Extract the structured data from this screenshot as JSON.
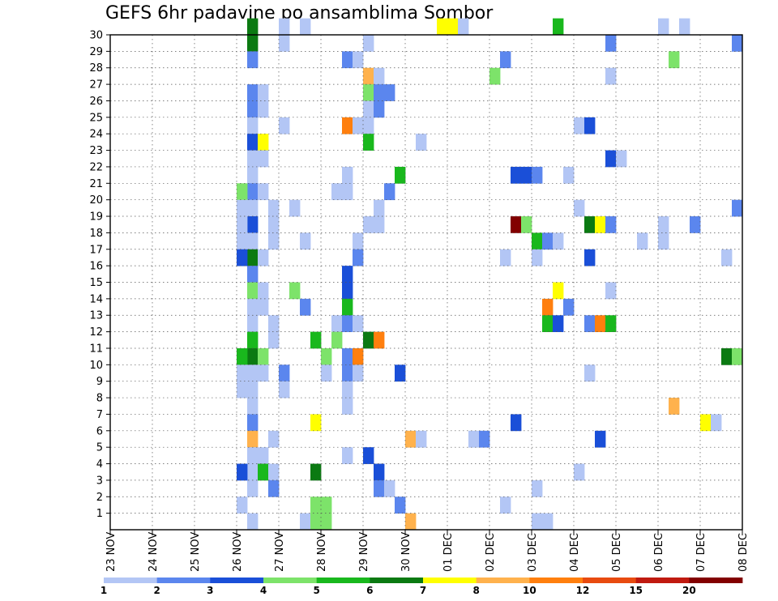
{
  "chart_data": {
    "type": "heatmap",
    "title": "GEFS 6hr padavine po ansamblima Sombor",
    "y_labels": [
      "1",
      "2",
      "3",
      "4",
      "5",
      "6",
      "7",
      "8",
      "9",
      "10",
      "11",
      "12",
      "13",
      "14",
      "15",
      "16",
      "17",
      "18",
      "19",
      "20",
      "21",
      "22",
      "23",
      "24",
      "25",
      "26",
      "27",
      "28",
      "29",
      "30"
    ],
    "x_labels": [
      "23 NOV",
      "24 NOV",
      "25 NOV",
      "26 NOV",
      "27 NOV",
      "28 NOV",
      "29 NOV",
      "30 NOV",
      "01 DEC",
      "02 DEC",
      "03 DEC",
      "04 DEC",
      "05 DEC",
      "06 DEC",
      "07 DEC",
      "08 DEC"
    ],
    "grid": true,
    "colorbar": {
      "labels": [
        "1",
        "2",
        "3",
        "4",
        "5",
        "6",
        "7",
        "8",
        "10",
        "12",
        "15",
        "20"
      ],
      "colors": [
        "#b3c6f5",
        "#5b86ee",
        "#1a4fd8",
        "#7de36a",
        "#19b81d",
        "#0b7a12",
        "#ffff00",
        "#ffb24d",
        "#ff7f0e",
        "#e84b10",
        "#c01a10",
        "#820000"
      ]
    },
    "cells": [
      [
        13,
        30,
        5
      ],
      [
        13,
        29,
        5
      ],
      [
        13,
        28,
        1
      ],
      [
        13,
        26,
        1
      ],
      [
        13,
        25,
        1
      ],
      [
        13,
        24,
        0
      ],
      [
        13,
        23,
        2
      ],
      [
        13,
        22,
        0
      ],
      [
        13,
        21,
        0
      ],
      [
        13,
        20,
        1
      ],
      [
        13,
        19,
        0
      ],
      [
        13,
        18,
        2
      ],
      [
        13,
        17,
        0
      ],
      [
        13,
        16,
        5
      ],
      [
        13,
        15,
        1
      ],
      [
        13,
        14,
        3
      ],
      [
        13,
        13,
        0
      ],
      [
        13,
        12,
        0
      ],
      [
        13,
        11,
        4
      ],
      [
        13,
        10,
        5
      ],
      [
        13,
        9,
        0
      ],
      [
        13,
        8,
        0
      ],
      [
        13,
        7,
        0
      ],
      [
        13,
        6,
        1
      ],
      [
        13,
        5,
        7
      ],
      [
        13,
        4,
        0
      ],
      [
        13,
        3,
        0
      ],
      [
        13,
        2,
        0
      ],
      [
        13,
        0,
        0
      ],
      [
        12,
        20,
        3
      ],
      [
        12,
        19,
        0
      ],
      [
        12,
        18,
        0
      ],
      [
        12,
        17,
        0
      ],
      [
        12,
        16,
        2
      ],
      [
        12,
        10,
        4
      ],
      [
        12,
        9,
        0
      ],
      [
        12,
        8,
        0
      ],
      [
        12,
        3,
        2
      ],
      [
        12,
        1,
        0
      ],
      [
        14,
        26,
        0
      ],
      [
        14,
        25,
        0
      ],
      [
        14,
        23,
        6
      ],
      [
        14,
        22,
        0
      ],
      [
        14,
        20,
        0
      ],
      [
        14,
        16,
        0
      ],
      [
        14,
        14,
        0
      ],
      [
        14,
        13,
        0
      ],
      [
        14,
        10,
        3
      ],
      [
        14,
        9,
        0
      ],
      [
        14,
        4,
        0
      ],
      [
        14,
        3,
        4
      ],
      [
        15,
        3,
        0
      ],
      [
        15,
        5,
        0
      ],
      [
        15,
        2,
        1
      ],
      [
        15,
        12,
        0
      ],
      [
        15,
        11,
        0
      ],
      [
        15,
        17,
        0
      ],
      [
        15,
        18,
        0
      ],
      [
        15,
        19,
        0
      ],
      [
        16,
        30,
        0
      ],
      [
        16,
        29,
        0
      ],
      [
        16,
        24,
        0
      ],
      [
        16,
        9,
        1
      ],
      [
        16,
        8,
        0
      ],
      [
        17,
        19,
        0
      ],
      [
        17,
        14,
        3
      ],
      [
        18,
        17,
        0
      ],
      [
        18,
        13,
        1
      ],
      [
        18,
        30,
        0
      ],
      [
        18,
        0,
        0
      ],
      [
        19,
        11,
        4
      ],
      [
        19,
        6,
        6
      ],
      [
        19,
        3,
        5
      ],
      [
        19,
        1,
        3
      ],
      [
        19,
        0,
        3
      ],
      [
        20,
        10,
        3
      ],
      [
        20,
        9,
        0
      ],
      [
        20,
        1,
        3
      ],
      [
        20,
        0,
        3
      ],
      [
        21,
        20,
        0
      ],
      [
        21,
        12,
        0
      ],
      [
        21,
        11,
        3
      ],
      [
        22,
        28,
        1
      ],
      [
        22,
        24,
        8
      ],
      [
        22,
        21,
        0
      ],
      [
        22,
        20,
        0
      ],
      [
        22,
        15,
        2
      ],
      [
        22,
        14,
        2
      ],
      [
        22,
        13,
        4
      ],
      [
        22,
        12,
        1
      ],
      [
        22,
        10,
        1
      ],
      [
        22,
        9,
        1
      ],
      [
        22,
        8,
        0
      ],
      [
        22,
        7,
        0
      ],
      [
        22,
        4,
        0
      ],
      [
        23,
        28,
        0
      ],
      [
        23,
        24,
        0
      ],
      [
        23,
        17,
        0
      ],
      [
        23,
        16,
        1
      ],
      [
        23,
        12,
        0
      ],
      [
        23,
        10,
        8
      ],
      [
        23,
        9,
        0
      ],
      [
        24,
        29,
        0
      ],
      [
        24,
        27,
        7
      ],
      [
        24,
        26,
        3
      ],
      [
        24,
        25,
        0
      ],
      [
        24,
        24,
        0
      ],
      [
        24,
        23,
        4
      ],
      [
        24,
        18,
        0
      ],
      [
        24,
        11,
        5
      ],
      [
        24,
        4,
        2
      ],
      [
        25,
        27,
        0
      ],
      [
        25,
        26,
        1
      ],
      [
        25,
        25,
        1
      ],
      [
        25,
        19,
        0
      ],
      [
        25,
        18,
        0
      ],
      [
        25,
        11,
        8
      ],
      [
        25,
        3,
        2
      ],
      [
        25,
        2,
        1
      ],
      [
        26,
        26,
        1
      ],
      [
        26,
        20,
        1
      ],
      [
        26,
        2,
        0
      ],
      [
        27,
        21,
        4
      ],
      [
        27,
        9,
        2
      ],
      [
        27,
        1,
        1
      ],
      [
        28,
        5,
        7
      ],
      [
        28,
        0,
        7
      ],
      [
        29,
        23,
        0
      ],
      [
        29,
        5,
        0
      ],
      [
        31,
        30,
        6
      ],
      [
        32,
        30,
        6
      ],
      [
        33,
        30,
        0
      ],
      [
        34,
        5,
        0
      ],
      [
        35,
        5,
        1
      ],
      [
        36,
        27,
        3
      ],
      [
        37,
        28,
        1
      ],
      [
        37,
        16,
        0
      ],
      [
        37,
        1,
        0
      ],
      [
        38,
        21,
        2
      ],
      [
        38,
        6,
        2
      ],
      [
        38,
        18,
        11
      ],
      [
        39,
        21,
        2
      ],
      [
        39,
        18,
        3
      ],
      [
        40,
        21,
        1
      ],
      [
        40,
        17,
        4
      ],
      [
        40,
        16,
        0
      ],
      [
        40,
        2,
        0
      ],
      [
        40,
        0,
        0
      ],
      [
        41,
        13,
        8
      ],
      [
        41,
        12,
        4
      ],
      [
        41,
        17,
        1
      ],
      [
        41,
        0,
        0
      ],
      [
        42,
        17,
        0
      ],
      [
        42,
        14,
        6
      ],
      [
        42,
        12,
        2
      ],
      [
        42,
        30,
        4
      ],
      [
        43,
        21,
        0
      ],
      [
        43,
        13,
        1
      ],
      [
        44,
        24,
        0
      ],
      [
        44,
        19,
        0
      ],
      [
        44,
        3,
        0
      ],
      [
        45,
        24,
        2
      ],
      [
        45,
        18,
        5
      ],
      [
        45,
        16,
        2
      ],
      [
        45,
        12,
        1
      ],
      [
        45,
        9,
        0
      ],
      [
        46,
        18,
        6
      ],
      [
        46,
        12,
        8
      ],
      [
        46,
        5,
        2
      ],
      [
        47,
        18,
        1
      ],
      [
        47,
        27,
        0
      ],
      [
        47,
        29,
        1
      ],
      [
        47,
        22,
        2
      ],
      [
        47,
        14,
        0
      ],
      [
        47,
        12,
        4
      ],
      [
        48,
        22,
        0
      ],
      [
        50,
        17,
        0
      ],
      [
        52,
        30,
        0
      ],
      [
        52,
        18,
        0
      ],
      [
        52,
        17,
        0
      ],
      [
        53,
        28,
        3
      ],
      [
        53,
        7,
        7
      ],
      [
        54,
        30,
        0
      ],
      [
        55,
        18,
        1
      ],
      [
        56,
        6,
        6
      ],
      [
        57,
        6,
        0
      ],
      [
        58,
        16,
        0
      ],
      [
        58,
        10,
        5
      ],
      [
        59,
        10,
        3
      ],
      [
        59,
        29,
        1
      ],
      [
        59,
        19,
        1
      ]
    ]
  }
}
